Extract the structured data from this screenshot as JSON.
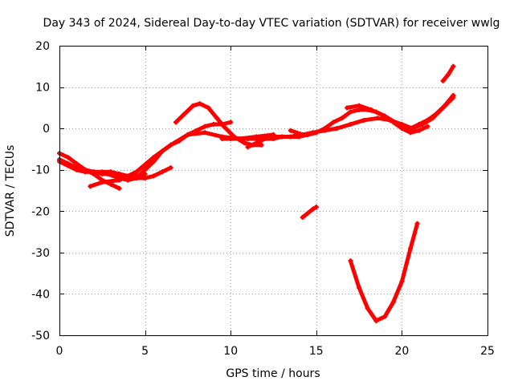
{
  "chart_data": {
    "type": "scatter",
    "title": "Day 343 of 2024, Sidereal Day-to-day VTEC variation (SDTVAR) for receiver wwlg",
    "xlabel": "GPS time / hours",
    "ylabel": "SDTVAR / TECUs",
    "xlim": [
      0,
      25
    ],
    "ylim": [
      -50,
      20
    ],
    "xticks": [
      0,
      5,
      10,
      15,
      20,
      25
    ],
    "yticks": [
      20,
      10,
      0,
      -10,
      -20,
      -30,
      -40,
      -50
    ],
    "grid": true,
    "series_color": "#ff0000",
    "series": [
      {
        "name": "arc-1",
        "x": [
          0,
          0.5,
          1,
          1.5,
          2,
          2.5,
          3,
          3.5
        ],
        "y": [
          -6,
          -7,
          -8.5,
          -10,
          -11,
          -12.5,
          -13.5,
          -14.5
        ]
      },
      {
        "name": "arc-2",
        "x": [
          0,
          0.5,
          1,
          1.5,
          2,
          2.5,
          3,
          3.5,
          4,
          4.5,
          5
        ],
        "y": [
          -8,
          -9,
          -10,
          -10.5,
          -10.5,
          -11,
          -11,
          -11.5,
          -11.5,
          -11.5,
          -11
        ]
      },
      {
        "name": "arc-3",
        "x": [
          0,
          0.5,
          1,
          1.5,
          2,
          2.5,
          3,
          3.5,
          4,
          4.5,
          5,
          5.5,
          6,
          6.5
        ],
        "y": [
          -7.5,
          -8.5,
          -9.5,
          -10,
          -10.5,
          -10.5,
          -10.5,
          -11,
          -11.5,
          -12,
          -12,
          -11.5,
          -10.5,
          -9.5
        ]
      },
      {
        "name": "arc-4",
        "x": [
          1.8,
          2.5,
          3.5,
          4.5,
          5.5,
          6.5,
          7.5,
          8.5,
          9.5,
          10.5,
          11.5,
          12.5
        ],
        "y": [
          -14,
          -13,
          -12.5,
          -10.5,
          -7,
          -4,
          -1.5,
          -1,
          -2,
          -2.5,
          -2,
          -1.5
        ]
      },
      {
        "name": "arc-5",
        "x": [
          2.8,
          3.5,
          4,
          4.5,
          5,
          5.5,
          6,
          6.5,
          7,
          7.5,
          8,
          8.5,
          9,
          9.5,
          10
        ],
        "y": [
          -11,
          -12,
          -12.5,
          -12,
          -10,
          -8,
          -5.5,
          -4,
          -3,
          -1.5,
          -0.5,
          0.5,
          1,
          1,
          1.5
        ]
      },
      {
        "name": "arc-6",
        "x": [
          6.8,
          7.3,
          7.8,
          8.2,
          8.7,
          9.2,
          9.6,
          10.2,
          10.8,
          11.3,
          11.8
        ],
        "y": [
          1.5,
          3.5,
          5.5,
          6,
          5,
          2.5,
          0.5,
          -2,
          -3.5,
          -4,
          -4
        ]
      },
      {
        "name": "arc-7",
        "x": [
          9.5,
          10,
          10.5,
          11,
          11.5,
          12,
          12.5,
          13,
          13.5,
          14,
          14.5,
          15,
          15.5,
          16,
          16.5,
          17,
          17.5,
          18,
          18.5,
          19,
          19.5,
          20,
          20.5,
          21,
          21.5
        ],
        "y": [
          -2.5,
          -2.5,
          -2.5,
          -2.5,
          -2.5,
          -2.5,
          -2,
          -2,
          -2,
          -2,
          -1.5,
          -1,
          0,
          1.5,
          2.5,
          4,
          4.5,
          4.5,
          4,
          3,
          1.5,
          0,
          -1,
          -0.5,
          0.5
        ]
      },
      {
        "name": "arc-8",
        "x": [
          11,
          11.5,
          12,
          12.5,
          13,
          13.5,
          14,
          14.5,
          15
        ],
        "y": [
          -4.5,
          -3.5,
          -2.5,
          -2.5,
          -2,
          -2,
          -1.5,
          -1.5,
          -1
        ]
      },
      {
        "name": "arc-9",
        "x": [
          13.5,
          14.2,
          14.8,
          15.5,
          16.2,
          17,
          17.8,
          18.6,
          19.3,
          20,
          20.6,
          21.2,
          21.8,
          22.4,
          23
        ],
        "y": [
          -0.5,
          -1.5,
          -1,
          -0.5,
          0,
          1,
          2,
          2.5,
          2,
          1,
          0,
          1,
          2.5,
          5,
          7.5
        ]
      },
      {
        "name": "arc-10",
        "x": [
          16.8,
          17.5,
          18.2,
          19,
          19.8,
          20.5,
          21,
          21.5,
          22,
          22.5,
          23
        ],
        "y": [
          5,
          5.5,
          4.5,
          3,
          1,
          0,
          1,
          2,
          3.5,
          5.5,
          8
        ]
      },
      {
        "name": "arc-11",
        "x": [
          14.2,
          14.5,
          14.8,
          15
        ],
        "y": [
          -21.5,
          -20.5,
          -19.5,
          -19
        ]
      },
      {
        "name": "arc-12",
        "x": [
          17,
          17.5,
          18,
          18.5,
          19,
          19.5,
          20,
          20.5,
          20.9
        ],
        "y": [
          -32,
          -38.5,
          -43.5,
          -46.5,
          -45.5,
          -42,
          -37,
          -29,
          -23
        ]
      },
      {
        "name": "arc-13",
        "x": [
          22.4,
          22.7,
          23
        ],
        "y": [
          11.5,
          13,
          15
        ]
      }
    ]
  }
}
